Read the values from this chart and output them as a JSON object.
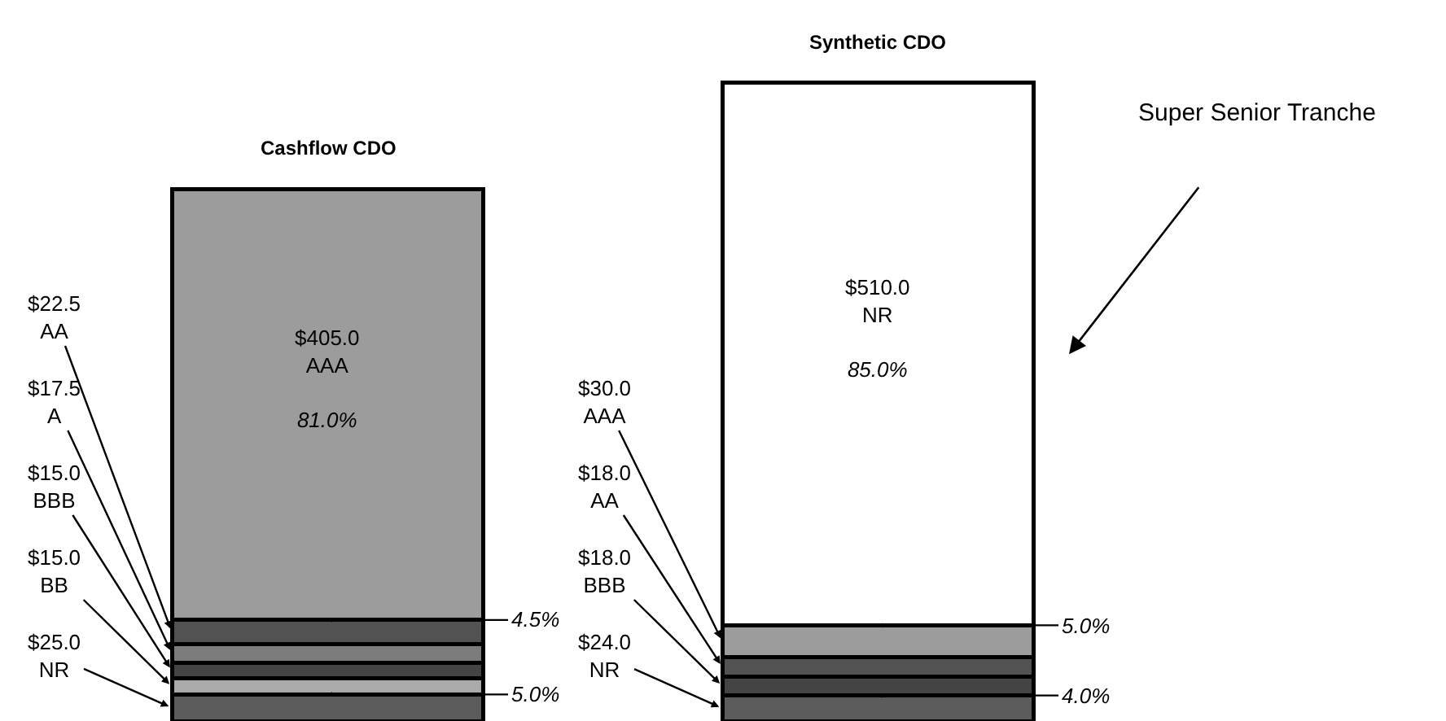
{
  "chart_data": {
    "type": "bar",
    "stacked": true,
    "categories": [
      "Cashflow CDO",
      "Synthetic CDO"
    ],
    "series": [
      {
        "color": "#5c5c5c",
        "values": [
          25.0,
          24.0
        ],
        "value_labels": [
          "$25.0\nNR",
          "$24.0\nNR"
        ]
      },
      {
        "color": "#aaaaaa",
        "values": [
          15.0,
          null
        ],
        "value_labels": [
          "$15.0\nBB",
          null
        ]
      },
      {
        "color": "#444444",
        "values": [
          15.0,
          18.0
        ],
        "value_labels": [
          "$15.0\nBBB",
          "$18.0\nBBB"
        ]
      },
      {
        "color": "#7c7c7c",
        "values": [
          17.5,
          null
        ],
        "value_labels": [
          "$17.5\nA",
          null
        ]
      },
      {
        "color": "#525252",
        "values": [
          22.5,
          18.0
        ],
        "value_labels": [
          "$22.5\nAA",
          "$18.0\nAA"
        ]
      },
      {
        "color": "#9c9c9c",
        "values": [
          405.0,
          30.0
        ],
        "value_labels": [
          "$405.0\nAAA\n81.0%",
          "$30.0\nAAA"
        ]
      },
      {
        "color": "#ffffff",
        "values": [
          null,
          510.0
        ],
        "value_labels": [
          null,
          "$510.0\nNR\n85.0%"
        ]
      }
    ],
    "annotations": [
      {
        "text": "4.5%",
        "x": "Cashflow CDO",
        "y": 95
      },
      {
        "text": "5.0%",
        "x": "Cashflow CDO",
        "y": 25
      },
      {
        "text": "5.0%",
        "x": "Synthetic CDO",
        "y": 90
      },
      {
        "text": "4.0%",
        "x": "Synthetic CDO",
        "y": 24
      },
      "Super Senior Tranche"
    ]
  }
}
